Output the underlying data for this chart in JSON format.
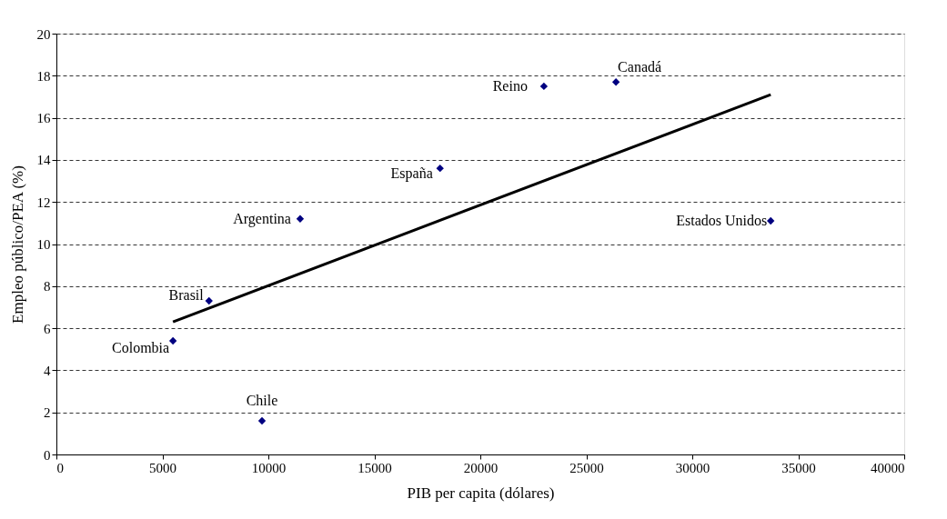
{
  "chart_data": {
    "type": "scatter",
    "xlabel": "PIB per capita (dólares)",
    "ylabel": "Empleo público/PEA (%)",
    "series": [
      {
        "color": "#000080",
        "marker": "diamond",
        "x": [
          5500,
          7200,
          9700,
          11500,
          18100,
          23000,
          26400,
          33700
        ],
        "values": [
          5.4,
          7.3,
          1.6,
          11.2,
          13.6,
          17.5,
          17.7,
          11.1
        ]
      },
      {
        "type": "line",
        "color": "#000000",
        "line_style": "solid",
        "x": [
          5500,
          33700
        ],
        "values": [
          6.3,
          17.1
        ]
      }
    ],
    "annotations": [
      {
        "text": "Colombia",
        "x": 5500,
        "y": 5.4
      },
      {
        "text": "Brasil",
        "x": 7200,
        "y": 7.3
      },
      {
        "text": "Chile",
        "x": 9700,
        "y": 1.6
      },
      {
        "text": "Argentina",
        "x": 11500,
        "y": 11.2
      },
      {
        "text": "España",
        "x": 18100,
        "y": 13.6
      },
      {
        "text": "Reino",
        "x": 23000,
        "y": 17.5
      },
      {
        "text": "Canadá",
        "x": 26400,
        "y": 17.7
      },
      {
        "text": "Estados Unidos",
        "x": 33700,
        "y": 11.1
      }
    ],
    "xlim": [
      0,
      40000
    ],
    "xticks": [
      0,
      5000,
      10000,
      15000,
      20000,
      25000,
      30000,
      35000,
      40000
    ],
    "ylim": [
      0,
      20
    ],
    "yticks": [
      0,
      2,
      4,
      6,
      8,
      10,
      12,
      14,
      16,
      18,
      20
    ],
    "grid": "y"
  }
}
